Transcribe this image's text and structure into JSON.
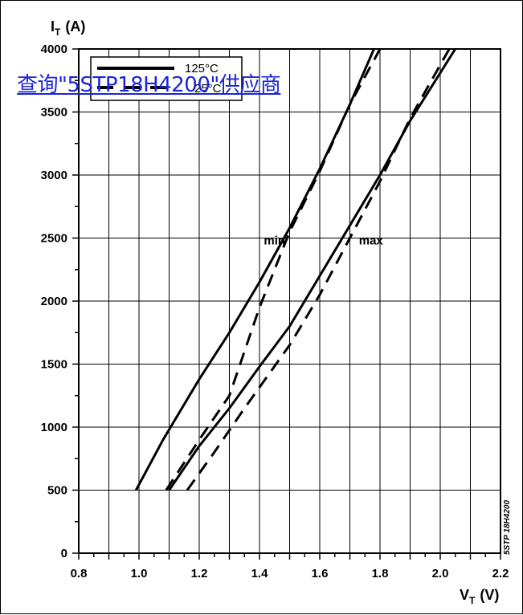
{
  "overlay": {
    "link_text": "查询\"5STP18H4200\"供应商",
    "link_color": "#1a25d8"
  },
  "chart_data": {
    "type": "line",
    "title": "",
    "xlabel": "V",
    "xlabel_sub": "T",
    "xlabel_unit": "(V)",
    "ylabel": "I",
    "ylabel_sub": "T",
    "ylabel_unit": "(A)",
    "xlim": [
      0.8,
      2.2
    ],
    "ylim": [
      0,
      4000
    ],
    "x_ticks": [
      "0.8",
      "1.0",
      "1.2",
      "1.4",
      "1.6",
      "1.8",
      "2.0",
      "2.2"
    ],
    "y_ticks": [
      "0",
      "500",
      "1000",
      "1500",
      "2000",
      "2500",
      "3000",
      "3500",
      "4000"
    ],
    "grid": true,
    "legend_position": "top-left",
    "legend": [
      {
        "label": "125°C",
        "style": "solid"
      },
      {
        "label": "25°C",
        "style": "dashed"
      }
    ],
    "annotations": [
      {
        "text": "min",
        "x": 1.45,
        "y": 2450
      },
      {
        "text": "max",
        "x": 1.77,
        "y": 2450
      }
    ],
    "side_label": "5STP 18H4200",
    "series": [
      {
        "curve": "min",
        "temp": "125°C",
        "style": "solid",
        "points": [
          [
            0.99,
            500
          ],
          [
            1.08,
            900
          ],
          [
            1.2,
            1380
          ],
          [
            1.3,
            1750
          ],
          [
            1.4,
            2150
          ],
          [
            1.5,
            2580
          ],
          [
            1.6,
            3050
          ],
          [
            1.7,
            3560
          ],
          [
            1.78,
            4000
          ]
        ]
      },
      {
        "curve": "min",
        "temp": "25°C",
        "style": "dashed",
        "points": [
          [
            1.09,
            500
          ],
          [
            1.2,
            900
          ],
          [
            1.3,
            1250
          ],
          [
            1.4,
            1950
          ],
          [
            1.5,
            2550
          ],
          [
            1.6,
            3030
          ],
          [
            1.7,
            3560
          ],
          [
            1.8,
            4000
          ]
        ]
      },
      {
        "curve": "max",
        "temp": "125°C",
        "style": "solid",
        "points": [
          [
            1.1,
            500
          ],
          [
            1.2,
            850
          ],
          [
            1.3,
            1150
          ],
          [
            1.4,
            1480
          ],
          [
            1.5,
            1800
          ],
          [
            1.6,
            2200
          ],
          [
            1.7,
            2600
          ],
          [
            1.8,
            3000
          ],
          [
            1.9,
            3430
          ],
          [
            2.05,
            4000
          ]
        ]
      },
      {
        "curve": "max",
        "temp": "25°C",
        "style": "dashed",
        "points": [
          [
            1.16,
            500
          ],
          [
            1.25,
            800
          ],
          [
            1.35,
            1150
          ],
          [
            1.5,
            1650
          ],
          [
            1.6,
            2050
          ],
          [
            1.7,
            2500
          ],
          [
            1.8,
            2950
          ],
          [
            1.9,
            3450
          ],
          [
            2.03,
            4000
          ]
        ]
      }
    ]
  }
}
